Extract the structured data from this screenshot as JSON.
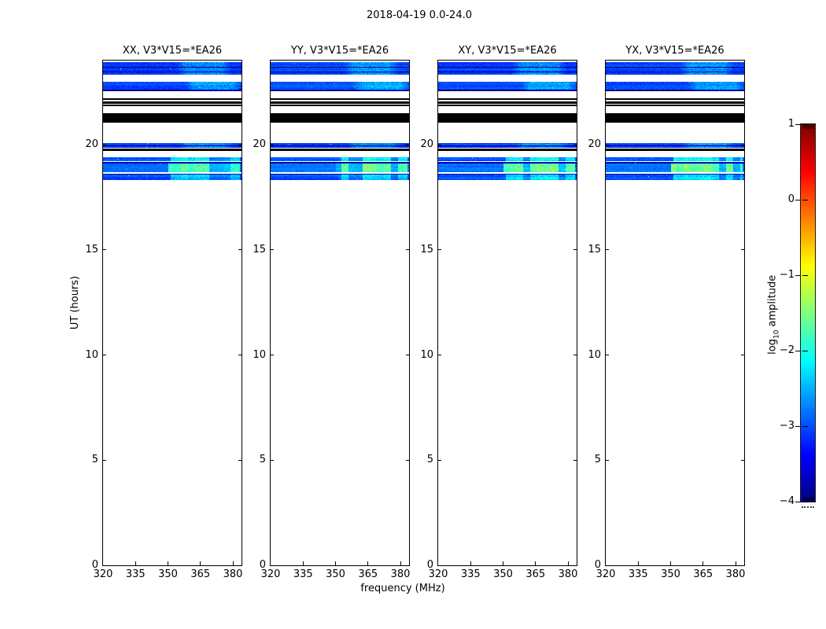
{
  "figure": {
    "suptitle": "2018-04-19 0.0-24.0",
    "xlabel": "frequency (MHz)",
    "ylabel": "UT (hours)",
    "colorbar_label_main": "log",
    "colorbar_label_sub": "10",
    "colorbar_label_rest": " amplitude"
  },
  "chart_data": {
    "type": "heatmap",
    "title": "2018-04-19 0.0-24.0",
    "xlabel": "frequency (MHz)",
    "ylabel": "UT (hours)",
    "panels": [
      {
        "label": "XX, V3*V15=*EA26"
      },
      {
        "label": "YY, V3*V15=*EA26"
      },
      {
        "label": "XY, V3*V15=*EA26"
      },
      {
        "label": "YX, V3*V15=*EA26"
      }
    ],
    "x_ticks": [
      320,
      335,
      350,
      365,
      380
    ],
    "y_ticks": [
      0,
      5,
      10,
      15,
      20
    ],
    "xlim": [
      320,
      384
    ],
    "ylim": [
      0,
      24
    ],
    "grid": false,
    "colorbar": {
      "label": "log10 amplitude",
      "ticks": [
        1,
        0,
        -1,
        -2,
        -3,
        -4
      ],
      "vmin": -4,
      "vmax": 1,
      "colormap": "jet"
    },
    "bands": [
      {
        "ut": [
          23.33,
          23.93
        ],
        "kind": "noise",
        "base": -3.05,
        "dark_rows": [
          6,
          12
        ],
        "hot": {
          "mhz": [
            354,
            379
          ],
          "boost": 0.55,
          "blocky": false
        }
      },
      {
        "ut": [
          22.53,
          22.99
        ],
        "kind": "noise",
        "base": -3.0,
        "dark_rows": [
          10,
          11,
          12
        ],
        "hot": {
          "mhz": [
            358,
            384
          ],
          "boost": 0.6,
          "blocky": false
        }
      },
      {
        "ut": [
          22.12,
          22.22
        ],
        "kind": "black"
      },
      {
        "ut": [
          21.93,
          22.06
        ],
        "kind": "black"
      },
      {
        "ut": [
          21.83,
          21.9
        ],
        "kind": "black"
      },
      {
        "ut": [
          21.04,
          21.5
        ],
        "kind": "black"
      },
      {
        "ut": [
          19.84,
          20.08
        ],
        "kind": "noise",
        "base": -3.1,
        "dark_rows": [
          3
        ],
        "hot": {
          "mhz": [
            355,
            380
          ],
          "boost": 0.5,
          "blocky": false
        }
      },
      {
        "ut": [
          19.7,
          19.83
        ],
        "kind": "black"
      },
      {
        "ut": [
          19.2,
          19.41
        ],
        "kind": "noise",
        "base": -2.95,
        "dark_rows": [],
        "hot": {
          "mhz": [
            351,
            383
          ],
          "boost": 0.95,
          "blocky": true
        }
      },
      {
        "ut": [
          19.12,
          19.18
        ],
        "kind": "noise",
        "base": -3.7,
        "dark_rows": []
      },
      {
        "ut": [
          18.7,
          19.11
        ],
        "kind": "noise",
        "base": -2.8,
        "dark_rows": [],
        "hot": {
          "mhz": [
            350,
            383
          ],
          "boost": 1.35,
          "blocky": true
        }
      },
      {
        "ut": [
          18.31,
          18.6
        ],
        "kind": "noise",
        "base": -3.0,
        "dark_rows": [
          0
        ],
        "hot": {
          "mhz": [
            351,
            383
          ],
          "boost": 0.8,
          "blocky": true
        }
      }
    ]
  }
}
